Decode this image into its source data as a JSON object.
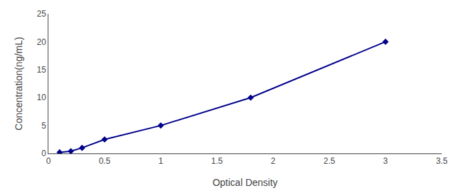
{
  "chart_data": {
    "type": "line",
    "x": [
      0.1,
      0.2,
      0.3,
      0.5,
      1.0,
      1.8,
      3.0
    ],
    "values": [
      0.2,
      0.4,
      1.0,
      2.5,
      5.0,
      10.0,
      20.0
    ],
    "color": "#00008B",
    "marker": "diamond",
    "line_style": "solid",
    "xlabel": "Optical Density",
    "ylabel": "Concentration(ng/mL)",
    "xlim": [
      0,
      3.5
    ],
    "ylim": [
      0,
      25
    ],
    "xticks": [
      0,
      0.5,
      1,
      1.5,
      2,
      2.5,
      3,
      3.5
    ],
    "yticks": [
      0,
      5,
      10,
      15,
      20,
      25
    ],
    "grid": false
  }
}
